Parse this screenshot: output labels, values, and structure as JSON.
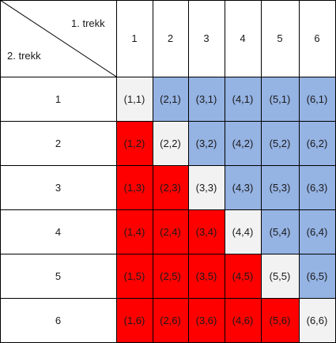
{
  "corner": {
    "top_label": "1. trekk",
    "bottom_label": "2. trekk"
  },
  "columns": [
    "1",
    "2",
    "3",
    "4",
    "5",
    "6"
  ],
  "rows": [
    "1",
    "2",
    "3",
    "4",
    "5",
    "6"
  ],
  "colors": {
    "diagonal": "#f2f2f2",
    "upper": "#95b3e3",
    "lower": "#ff0000",
    "header": "#ffffff"
  },
  "cells": [
    [
      "(1,1)",
      "(2,1)",
      "(3,1)",
      "(4,1)",
      "(5,1)",
      "(6,1)"
    ],
    [
      "(1,2)",
      "(2,2)",
      "(3,2)",
      "(4,2)",
      "(5,2)",
      "(6,2)"
    ],
    [
      "(1,3)",
      "(2,3)",
      "(3,3)",
      "(4,3)",
      "(5,3)",
      "(6,3)"
    ],
    [
      "(1,4)",
      "(2,4)",
      "(3,4)",
      "(4,4)",
      "(5,4)",
      "(6,4)"
    ],
    [
      "(1,5)",
      "(2,5)",
      "(3,5)",
      "(4,5)",
      "(5,5)",
      "(6,5)"
    ],
    [
      "(1,6)",
      "(2,6)",
      "(3,6)",
      "(4,6)",
      "(5,6)",
      "(6,6)"
    ]
  ]
}
